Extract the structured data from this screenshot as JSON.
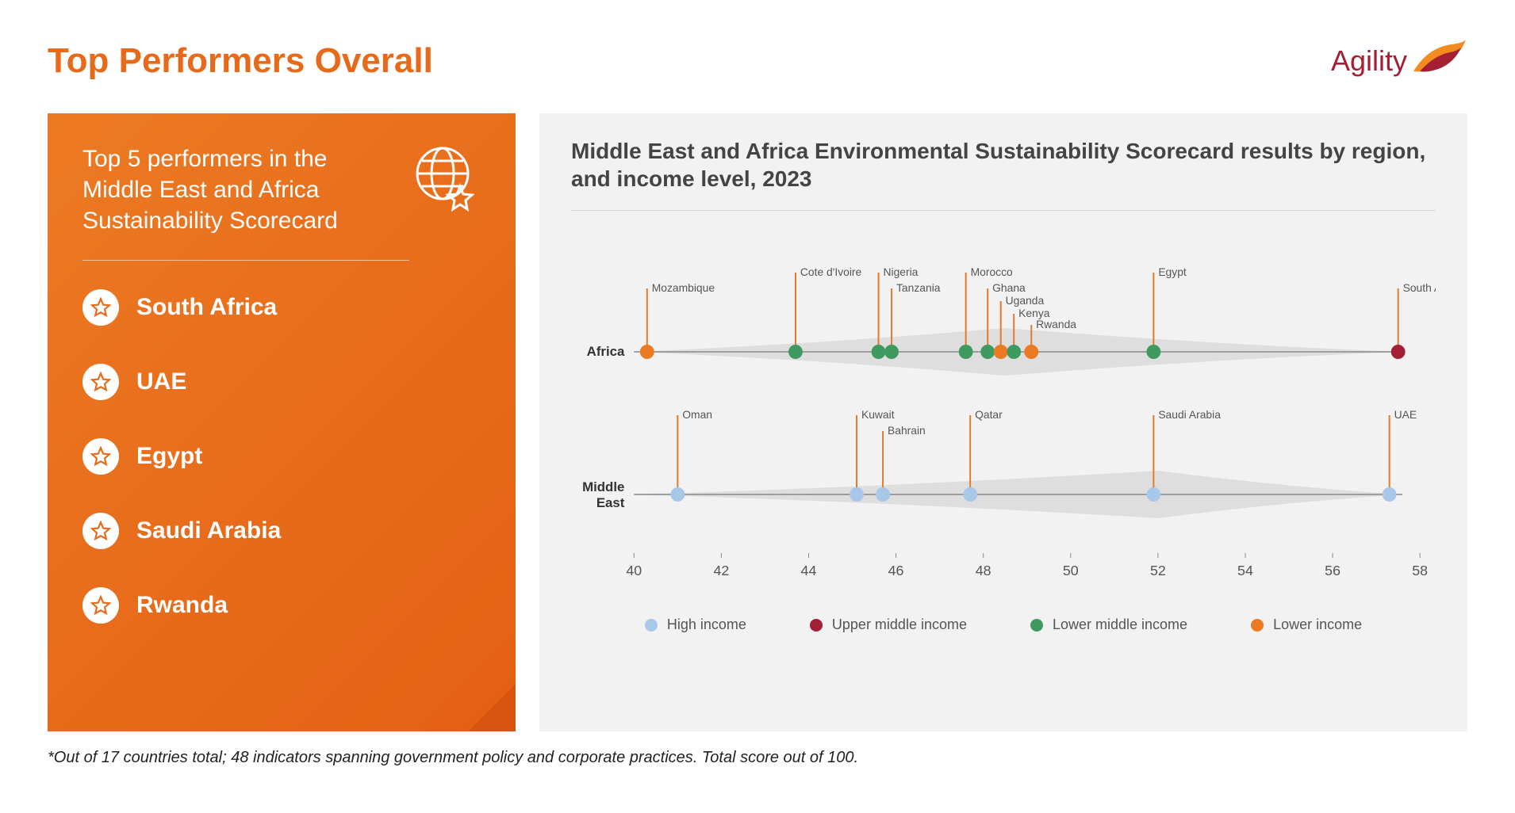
{
  "page": {
    "title": "Top Performers Overall",
    "title_color": "#e76a1a",
    "footnote": "*Out of 17 countries total; 48 indicators spanning government policy and corporate practices. Total score out of 100."
  },
  "brand": {
    "name": "Agility",
    "text_color": "#a41e34",
    "accent_color": "#f28c1e"
  },
  "left_panel": {
    "title": "Top 5 performers in the Middle East and Africa Sustainability Scorecard",
    "bg_gradient_from": "#ec7a23",
    "bg_gradient_to": "#e55f14",
    "star_stroke": "#e76a1a",
    "items": [
      {
        "label": "South Africa"
      },
      {
        "label": "UAE"
      },
      {
        "label": "Egypt"
      },
      {
        "label": "Saudi Arabia"
      },
      {
        "label": "Rwanda"
      }
    ]
  },
  "chart": {
    "title": "Middle East and Africa Environmental Sustainability Scorecard results by region, and income level, 2023",
    "background": "#f2f2f2",
    "x_axis": {
      "min": 40,
      "max": 58,
      "tick_step": 2,
      "label_fontsize": 18
    },
    "axis_color": "#888888",
    "tick_label_color": "#555555",
    "leader_line_color": "#e07b2e",
    "point_label_color": "#555555",
    "point_label_fontsize": 14,
    "row_label_color": "#333333",
    "row_label_fontsize": 17,
    "violin_fill": "#dedede",
    "marker_radius": 9,
    "income_colors": {
      "high": "#a7c8e8",
      "upper_mid": "#a41e34",
      "lower_mid": "#3e9a5e",
      "lower": "#ec7a23"
    },
    "legend": [
      {
        "key": "high",
        "label": "High income"
      },
      {
        "key": "upper_mid",
        "label": "Upper middle income"
      },
      {
        "key": "lower_mid",
        "label": "Lower middle income"
      },
      {
        "key": "lower",
        "label": "Lower income"
      }
    ],
    "rows": [
      {
        "label": "Africa",
        "violin": {
          "start": 40.0,
          "end": 57.6,
          "peak_x": 48.5,
          "peak_half_height": 30
        },
        "points": [
          {
            "name": "Mozambique",
            "x": 40.3,
            "income": "lower",
            "label_tier": 2
          },
          {
            "name": "Cote d'Ivoire",
            "x": 43.7,
            "income": "lower_mid",
            "label_tier": 1
          },
          {
            "name": "Nigeria",
            "x": 45.6,
            "income": "lower_mid",
            "label_tier": 1
          },
          {
            "name": "Tanzania",
            "x": 45.9,
            "income": "lower_mid",
            "label_tier": 2
          },
          {
            "name": "Morocco",
            "x": 47.6,
            "income": "lower_mid",
            "label_tier": 1
          },
          {
            "name": "Ghana",
            "x": 48.1,
            "income": "lower_mid",
            "label_tier": 2
          },
          {
            "name": "Uganda",
            "x": 48.4,
            "income": "lower",
            "label_tier": 3
          },
          {
            "name": "Kenya",
            "x": 48.7,
            "income": "lower_mid",
            "label_tier": 4
          },
          {
            "name": "Rwanda",
            "x": 49.1,
            "income": "lower",
            "label_tier": 5
          },
          {
            "name": "Egypt",
            "x": 51.9,
            "income": "lower_mid",
            "label_tier": 1
          },
          {
            "name": "South Africa",
            "x": 57.5,
            "income": "upper_mid",
            "label_tier": 2
          }
        ]
      },
      {
        "label": "Middle East",
        "violin": {
          "start": 40.0,
          "end": 57.6,
          "peak_x": 52.0,
          "peak_half_height": 30
        },
        "points": [
          {
            "name": "Oman",
            "x": 41.0,
            "income": "high",
            "label_tier": 1
          },
          {
            "name": "Kuwait",
            "x": 45.1,
            "income": "high",
            "label_tier": 1
          },
          {
            "name": "Bahrain",
            "x": 45.7,
            "income": "high",
            "label_tier": 2
          },
          {
            "name": "Qatar",
            "x": 47.7,
            "income": "high",
            "label_tier": 1
          },
          {
            "name": "Saudi Arabia",
            "x": 51.9,
            "income": "high",
            "label_tier": 1
          },
          {
            "name": "UAE",
            "x": 57.3,
            "income": "high",
            "label_tier": 1
          }
        ]
      }
    ]
  }
}
